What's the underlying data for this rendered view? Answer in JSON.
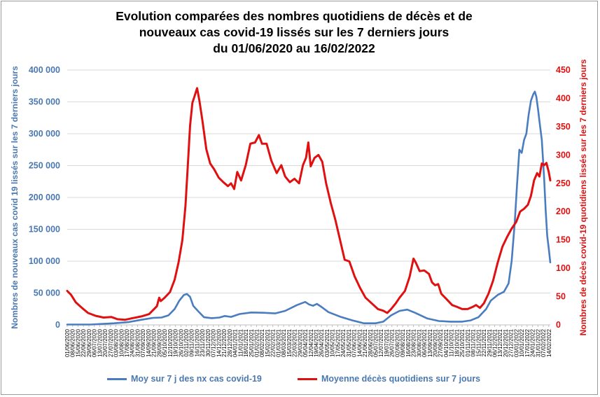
{
  "chart_data": {
    "type": "line",
    "title_lines": [
      "Evolution comparées des nombres quotidiens de décès et de",
      "nouveaux cas covid-19 lissés sur les 7 derniers jours",
      "du 01/06/2020 au 16/02/2022"
    ],
    "ylabel_left": "Nombres de nouveaux cas covid 19 lissés sur les 7 derniers jours",
    "ylabel_right": "Nombres de décès covid-19 quotidiens lissés sur les 7 derniers jours",
    "yticks_left": [
      "0",
      "50 000",
      "100 000",
      "150 000",
      "200 000",
      "250 000",
      "300 000",
      "350 000",
      "400 000"
    ],
    "yticks_right": [
      "0",
      "50",
      "100",
      "150",
      "200",
      "250",
      "300",
      "350",
      "400",
      "450"
    ],
    "ylim_left": [
      0,
      400000
    ],
    "ylim_right": [
      0,
      450
    ],
    "xlim": [
      "2020-06-01",
      "2022-02-16"
    ],
    "x_tick_labels": [
      "01/06/2020",
      "08/06/2020",
      "15/06/2020",
      "22/06/2020",
      "29/06/2020",
      "06/07/2020",
      "13/07/2020",
      "20/07/2020",
      "27/07/2020",
      "03/08/2020",
      "10/08/2020",
      "17/08/2020",
      "24/08/2020",
      "31/08/2020",
      "07/09/2020",
      "14/09/2020",
      "21/09/2020",
      "28/09/2020",
      "05/10/2020",
      "12/10/2020",
      "19/10/2020",
      "26/10/2020",
      "02/11/2020",
      "09/11/2020",
      "16/11/2020",
      "23/11/2020",
      "30/11/2020",
      "07/12/2020",
      "14/12/2020",
      "21/12/2020",
      "28/12/2020",
      "04/01/2021",
      "11/01/2021",
      "18/01/2021",
      "25/01/2021",
      "01/02/2021",
      "08/02/2021",
      "15/02/2021",
      "22/02/2021",
      "01/03/2021",
      "08/03/2021",
      "15/03/2021",
      "22/03/2021",
      "29/03/2021",
      "05/04/2021",
      "12/04/2021",
      "19/04/2021",
      "26/04/2021",
      "03/05/2021",
      "10/05/2021",
      "17/05/2021",
      "24/05/2021",
      "31/05/2021",
      "07/06/2021",
      "14/06/2021",
      "21/06/2021",
      "28/06/2021",
      "05/07/2021",
      "12/07/2021",
      "19/07/2021",
      "26/07/2021",
      "02/08/2021",
      "09/08/2021",
      "16/08/2021",
      "23/08/2021",
      "30/08/2021",
      "06/09/2021",
      "13/09/2021",
      "20/09/2021",
      "27/09/2021",
      "04/10/2021",
      "11/10/2021",
      "18/10/2021",
      "25/10/2021",
      "01/11/2021",
      "08/11/2021",
      "15/11/2021",
      "22/11/2021",
      "29/11/2021",
      "06/12/2021",
      "13/12/2021",
      "20/12/2021",
      "27/12/2021",
      "03/01/2022",
      "10/01/2022",
      "17/01/2022",
      "24/01/2022",
      "31/01/2022",
      "07/02/2022",
      "14/02/2022"
    ],
    "grid": "horizontal",
    "legend_position": "bottom",
    "series": [
      {
        "name": "Moy sur 7 j des nx cas covid-19",
        "axis": "left",
        "color": "#4a7cc0",
        "points": [
          [
            "2020-06-01",
            500
          ],
          [
            "2020-07-01",
            600
          ],
          [
            "2020-08-01",
            2500
          ],
          [
            "2020-08-20",
            4500
          ],
          [
            "2020-09-05",
            8000
          ],
          [
            "2020-09-20",
            11000
          ],
          [
            "2020-10-01",
            11500
          ],
          [
            "2020-10-10",
            15000
          ],
          [
            "2020-10-18",
            25000
          ],
          [
            "2020-10-24",
            38000
          ],
          [
            "2020-10-30",
            47000
          ],
          [
            "2020-11-03",
            48500
          ],
          [
            "2020-11-07",
            44000
          ],
          [
            "2020-11-11",
            30000
          ],
          [
            "2020-11-17",
            22000
          ],
          [
            "2020-11-25",
            12000
          ],
          [
            "2020-12-05",
            10500
          ],
          [
            "2020-12-15",
            11500
          ],
          [
            "2020-12-22",
            14000
          ],
          [
            "2020-12-30",
            12500
          ],
          [
            "2021-01-10",
            17000
          ],
          [
            "2021-01-25",
            19500
          ],
          [
            "2021-02-10",
            19000
          ],
          [
            "2021-02-25",
            18000
          ],
          [
            "2021-03-10",
            22000
          ],
          [
            "2021-03-25",
            31000
          ],
          [
            "2021-04-05",
            36000
          ],
          [
            "2021-04-10",
            32000
          ],
          [
            "2021-04-15",
            30000
          ],
          [
            "2021-04-20",
            33000
          ],
          [
            "2021-04-25",
            29000
          ],
          [
            "2021-05-05",
            20000
          ],
          [
            "2021-05-20",
            13000
          ],
          [
            "2021-06-05",
            7000
          ],
          [
            "2021-06-20",
            2500
          ],
          [
            "2021-07-05",
            2500
          ],
          [
            "2021-07-15",
            5000
          ],
          [
            "2021-07-25",
            15000
          ],
          [
            "2021-08-05",
            22000
          ],
          [
            "2021-08-15",
            24000
          ],
          [
            "2021-08-25",
            19000
          ],
          [
            "2021-09-10",
            10000
          ],
          [
            "2021-09-25",
            6000
          ],
          [
            "2021-10-10",
            5000
          ],
          [
            "2021-10-25",
            5000
          ],
          [
            "2021-11-05",
            7000
          ],
          [
            "2021-11-15",
            12000
          ],
          [
            "2021-11-25",
            25000
          ],
          [
            "2021-12-01",
            38000
          ],
          [
            "2021-12-10",
            47000
          ],
          [
            "2021-12-18",
            52000
          ],
          [
            "2021-12-24",
            65000
          ],
          [
            "2021-12-28",
            100000
          ],
          [
            "2022-01-01",
            160000
          ],
          [
            "2022-01-04",
            220000
          ],
          [
            "2022-01-07",
            275000
          ],
          [
            "2022-01-10",
            270000
          ],
          [
            "2022-01-13",
            290000
          ],
          [
            "2022-01-16",
            300000
          ],
          [
            "2022-01-19",
            330000
          ],
          [
            "2022-01-22",
            352000
          ],
          [
            "2022-01-25",
            362000
          ],
          [
            "2022-01-27",
            366000
          ],
          [
            "2022-01-29",
            358000
          ],
          [
            "2022-01-31",
            340000
          ],
          [
            "2022-02-02",
            320000
          ],
          [
            "2022-02-05",
            290000
          ],
          [
            "2022-02-08",
            230000
          ],
          [
            "2022-02-10",
            180000
          ],
          [
            "2022-02-12",
            140000
          ],
          [
            "2022-02-14",
            120000
          ],
          [
            "2022-02-16",
            98000
          ]
        ]
      },
      {
        "name": "Moyenne décès quotidiens sur 7 jours",
        "axis": "right",
        "color": "#e01010",
        "points": [
          [
            "2020-06-01",
            60
          ],
          [
            "2020-06-06",
            53
          ],
          [
            "2020-06-12",
            40
          ],
          [
            "2020-06-20",
            30
          ],
          [
            "2020-06-28",
            21
          ],
          [
            "2020-07-08",
            16
          ],
          [
            "2020-07-18",
            13
          ],
          [
            "2020-07-28",
            14
          ],
          [
            "2020-08-05",
            10
          ],
          [
            "2020-08-15",
            9
          ],
          [
            "2020-08-25",
            12
          ],
          [
            "2020-09-05",
            15
          ],
          [
            "2020-09-15",
            19
          ],
          [
            "2020-09-25",
            33
          ],
          [
            "2020-09-28",
            48
          ],
          [
            "2020-09-30",
            42
          ],
          [
            "2020-10-05",
            48
          ],
          [
            "2020-10-12",
            58
          ],
          [
            "2020-10-18",
            80
          ],
          [
            "2020-10-23",
            110
          ],
          [
            "2020-10-28",
            150
          ],
          [
            "2020-11-01",
            210
          ],
          [
            "2020-11-04",
            280
          ],
          [
            "2020-11-07",
            352
          ],
          [
            "2020-11-10",
            392
          ],
          [
            "2020-11-13",
            405
          ],
          [
            "2020-11-16",
            418
          ],
          [
            "2020-11-19",
            396
          ],
          [
            "2020-11-23",
            360
          ],
          [
            "2020-11-28",
            310
          ],
          [
            "2020-12-03",
            285
          ],
          [
            "2020-12-08",
            275
          ],
          [
            "2020-12-14",
            260
          ],
          [
            "2020-12-20",
            252
          ],
          [
            "2020-12-26",
            245
          ],
          [
            "2020-12-30",
            250
          ],
          [
            "2021-01-03",
            240
          ],
          [
            "2021-01-07",
            270
          ],
          [
            "2021-01-12",
            255
          ],
          [
            "2021-01-18",
            282
          ],
          [
            "2021-01-24",
            320
          ],
          [
            "2021-01-30",
            322
          ],
          [
            "2021-02-04",
            335
          ],
          [
            "2021-02-08",
            320
          ],
          [
            "2021-02-14",
            320
          ],
          [
            "2021-02-20",
            290
          ],
          [
            "2021-02-27",
            268
          ],
          [
            "2021-03-05",
            282
          ],
          [
            "2021-03-10",
            262
          ],
          [
            "2021-03-16",
            252
          ],
          [
            "2021-03-22",
            258
          ],
          [
            "2021-03-28",
            250
          ],
          [
            "2021-04-02",
            282
          ],
          [
            "2021-04-06",
            295
          ],
          [
            "2021-04-09",
            322
          ],
          [
            "2021-04-12",
            280
          ],
          [
            "2021-04-17",
            295
          ],
          [
            "2021-04-22",
            300
          ],
          [
            "2021-04-27",
            288
          ],
          [
            "2021-05-02",
            250
          ],
          [
            "2021-05-08",
            215
          ],
          [
            "2021-05-14",
            185
          ],
          [
            "2021-05-20",
            150
          ],
          [
            "2021-05-26",
            115
          ],
          [
            "2021-06-01",
            112
          ],
          [
            "2021-06-08",
            85
          ],
          [
            "2021-06-15",
            65
          ],
          [
            "2021-06-22",
            48
          ],
          [
            "2021-06-30",
            38
          ],
          [
            "2021-07-08",
            28
          ],
          [
            "2021-07-15",
            25
          ],
          [
            "2021-07-20",
            21
          ],
          [
            "2021-07-25",
            28
          ],
          [
            "2021-07-31",
            38
          ],
          [
            "2021-08-05",
            48
          ],
          [
            "2021-08-12",
            60
          ],
          [
            "2021-08-18",
            85
          ],
          [
            "2021-08-23",
            117
          ],
          [
            "2021-08-26",
            110
          ],
          [
            "2021-08-31",
            95
          ],
          [
            "2021-09-06",
            96
          ],
          [
            "2021-09-12",
            90
          ],
          [
            "2021-09-16",
            75
          ],
          [
            "2021-09-20",
            70
          ],
          [
            "2021-09-24",
            72
          ],
          [
            "2021-09-28",
            55
          ],
          [
            "2021-10-05",
            45
          ],
          [
            "2021-10-12",
            35
          ],
          [
            "2021-10-18",
            32
          ],
          [
            "2021-10-25",
            28
          ],
          [
            "2021-11-01",
            28
          ],
          [
            "2021-11-08",
            32
          ],
          [
            "2021-11-12",
            35
          ],
          [
            "2021-11-17",
            30
          ],
          [
            "2021-11-22",
            38
          ],
          [
            "2021-11-28",
            55
          ],
          [
            "2021-12-04",
            78
          ],
          [
            "2021-12-10",
            110
          ],
          [
            "2021-12-16",
            138
          ],
          [
            "2021-12-22",
            155
          ],
          [
            "2021-12-28",
            170
          ],
          [
            "2022-01-03",
            182
          ],
          [
            "2022-01-08",
            200
          ],
          [
            "2022-01-13",
            205
          ],
          [
            "2022-01-18",
            212
          ],
          [
            "2022-01-22",
            228
          ],
          [
            "2022-01-26",
            255
          ],
          [
            "2022-01-30",
            268
          ],
          [
            "2022-02-02",
            262
          ],
          [
            "2022-02-05",
            285
          ],
          [
            "2022-02-08",
            282
          ],
          [
            "2022-02-11",
            286
          ],
          [
            "2022-02-14",
            270
          ],
          [
            "2022-02-16",
            255
          ]
        ]
      }
    ]
  }
}
